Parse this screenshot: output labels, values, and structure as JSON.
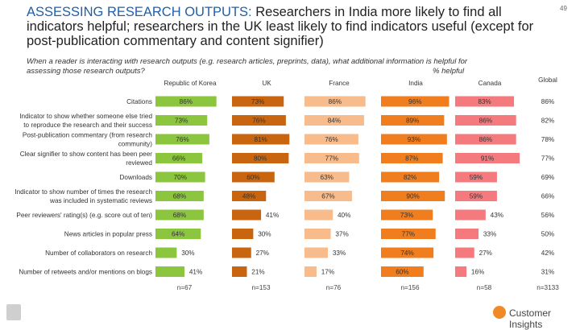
{
  "header": {
    "title_accent": "ASSESSING RESEARCH OUTPUTS:",
    "title_rest": " Researchers in India more likely to find all indicators helpful; researchers in the UK least likely to find indicators useful (except for post-publication commentary and content signifier)",
    "page_number": "49",
    "subtitle": "When a reader is interacting with research outputs (e.g. research articles, preprints, data), what additional information is helpful for assessing those research outputs?",
    "helpful_label": "% helpful"
  },
  "colors": {
    "korea": "#8cc63f",
    "uk": "#c8650e",
    "france": "#f7bb8c",
    "india": "#f07e1e",
    "canada": "#f47a7e",
    "global_text": "#333333"
  },
  "chart_data": {
    "type": "bar",
    "orientation": "horizontal-small-multiples",
    "categories": [
      "Citations",
      "Indicator to show whether someone else tried to reproduce the research and their success",
      "Post-publication commentary (from research community)",
      "Clear signifier to show content has been peer reviewed",
      "Downloads",
      "Indicator to show number of times the research was included in systematic reviews",
      "Peer reviewers' rating(s) (e.g. score out of ten)",
      "News articles in popular press",
      "Number of collaborators on research",
      "Number of retweets and/or mentions on blogs"
    ],
    "series": [
      {
        "name": "Republic of Korea",
        "values": [
          86,
          73,
          76,
          66,
          70,
          68,
          68,
          64,
          30,
          41
        ],
        "n": "n=67"
      },
      {
        "name": "UK",
        "values": [
          73,
          76,
          81,
          80,
          60,
          48,
          41,
          30,
          27,
          21
        ],
        "n": "n=153"
      },
      {
        "name": "France",
        "values": [
          86,
          84,
          76,
          77,
          63,
          67,
          40,
          37,
          33,
          17
        ],
        "n": "n=76"
      },
      {
        "name": "India",
        "values": [
          96,
          89,
          93,
          87,
          82,
          90,
          73,
          77,
          74,
          60
        ],
        "n": "n=156"
      },
      {
        "name": "Canada",
        "values": [
          83,
          86,
          86,
          91,
          59,
          59,
          43,
          33,
          27,
          16
        ],
        "n": "n=58"
      }
    ],
    "global": {
      "name": "Global",
      "values": [
        86,
        82,
        78,
        77,
        69,
        66,
        56,
        50,
        42,
        31
      ],
      "n": "n=3133"
    },
    "xlim": [
      0,
      100
    ],
    "value_suffix": "%"
  },
  "branding": {
    "right_logo_text": "Customer Insights"
  }
}
